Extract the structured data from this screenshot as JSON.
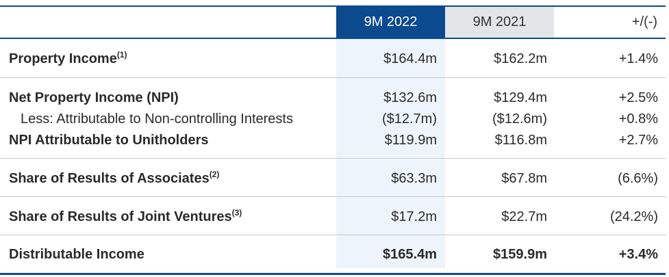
{
  "header": {
    "col_2022": "9M 2022",
    "col_2021": "9M 2021",
    "col_change": "+/(-)"
  },
  "rows": [
    {
      "label": "Property Income",
      "note": "(1)",
      "v2022": "$164.4m",
      "v2021": "$162.2m",
      "change": "+1.4%"
    },
    {
      "label": "Net Property Income (NPI)",
      "v2022": "$132.6m",
      "v2021": "$129.4m",
      "change": "+2.5%"
    },
    {
      "label": "Less: Attributable to Non-controlling Interests",
      "v2022": "($12.7m)",
      "v2021": "($12.6m)",
      "change": "+0.8%"
    },
    {
      "label": "NPI Attributable to Unitholders",
      "v2022": "$119.9m",
      "v2021": "$116.8m",
      "change": "+2.7%"
    },
    {
      "label": "Share of Results of Associates",
      "note": "(2)",
      "v2022": "$63.3m",
      "v2021": "$67.8m",
      "change": "(6.6%)"
    },
    {
      "label": "Share of Results of Joint Ventures",
      "note": "(3)",
      "v2022": "$17.2m",
      "v2021": "$22.7m",
      "change": "(24.2%)"
    },
    {
      "label": "Distributable Income",
      "v2022": "$165.4m",
      "v2021": "$159.9m",
      "change": "+3.4%"
    }
  ]
}
